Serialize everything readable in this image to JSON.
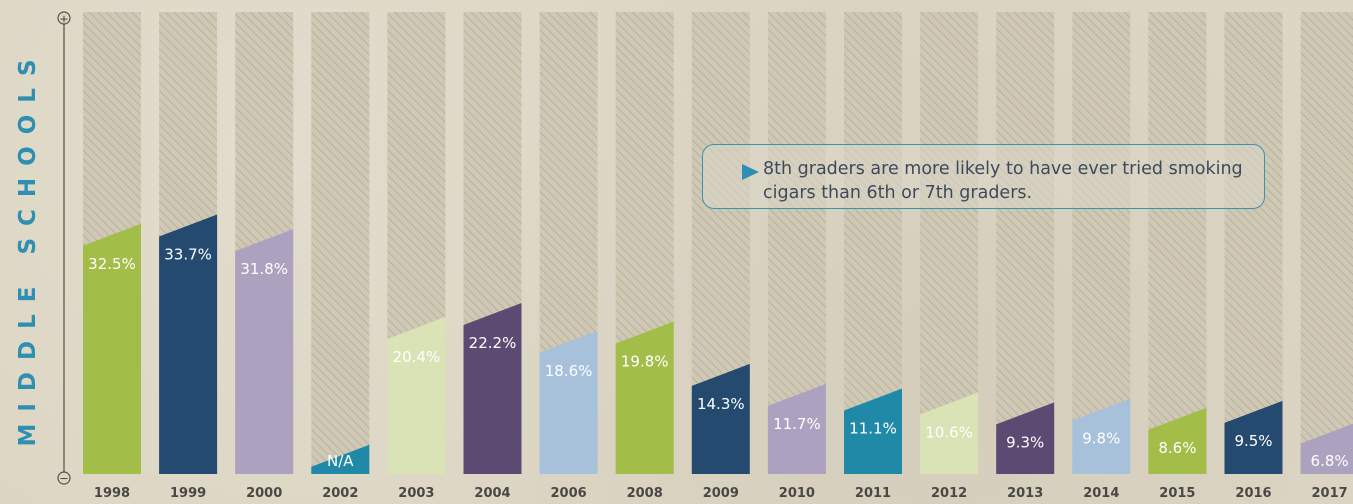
{
  "side_label": "MIDDLE SCHOOLS",
  "axis_markers": {
    "top": "+",
    "bottom": "−"
  },
  "callout": {
    "text": "8th graders are more likely to have ever tried smoking cigars than 6th or 7th graders."
  },
  "colors": {
    "green": "#a3bd49",
    "navy": "#244a6f",
    "lavender": "#aca2bf",
    "teal": "#2189a8",
    "pale_green": "#d9e3b5",
    "purple": "#5c4a72",
    "light_blue": "#a8c1da",
    "background": "#ddd6c4",
    "placeholder_bar": "#ccc4b1",
    "label_accent": "#2e8fb1"
  },
  "chart_data": {
    "type": "bar",
    "categories": [
      "1998",
      "1999",
      "2000",
      "2002",
      "2003",
      "2004",
      "2006",
      "2008",
      "2009",
      "2010",
      "2011",
      "2012",
      "2013",
      "2014",
      "2015",
      "2016",
      "2017"
    ],
    "values": [
      32.5,
      33.7,
      31.8,
      null,
      20.4,
      22.2,
      18.6,
      19.8,
      14.3,
      11.7,
      11.1,
      10.6,
      9.3,
      9.8,
      8.6,
      9.5,
      6.8
    ],
    "value_labels": [
      "32.5%",
      "33.7%",
      "31.8%",
      "N/A",
      "20.4%",
      "22.2%",
      "18.6%",
      "19.8%",
      "14.3%",
      "11.7%",
      "11.1%",
      "10.6%",
      "9.3%",
      "9.8%",
      "8.6%",
      "9.5%",
      "6.8%"
    ],
    "bar_colors": [
      "green",
      "navy",
      "lavender",
      "teal",
      "pale_green",
      "purple",
      "light_blue",
      "green",
      "navy",
      "lavender",
      "teal",
      "pale_green",
      "purple",
      "light_blue",
      "green",
      "navy",
      "lavender"
    ],
    "ylim": [
      0,
      60
    ],
    "xlabel": "",
    "ylabel": "MIDDLE SCHOOLS",
    "grid": false,
    "legend": "none"
  }
}
